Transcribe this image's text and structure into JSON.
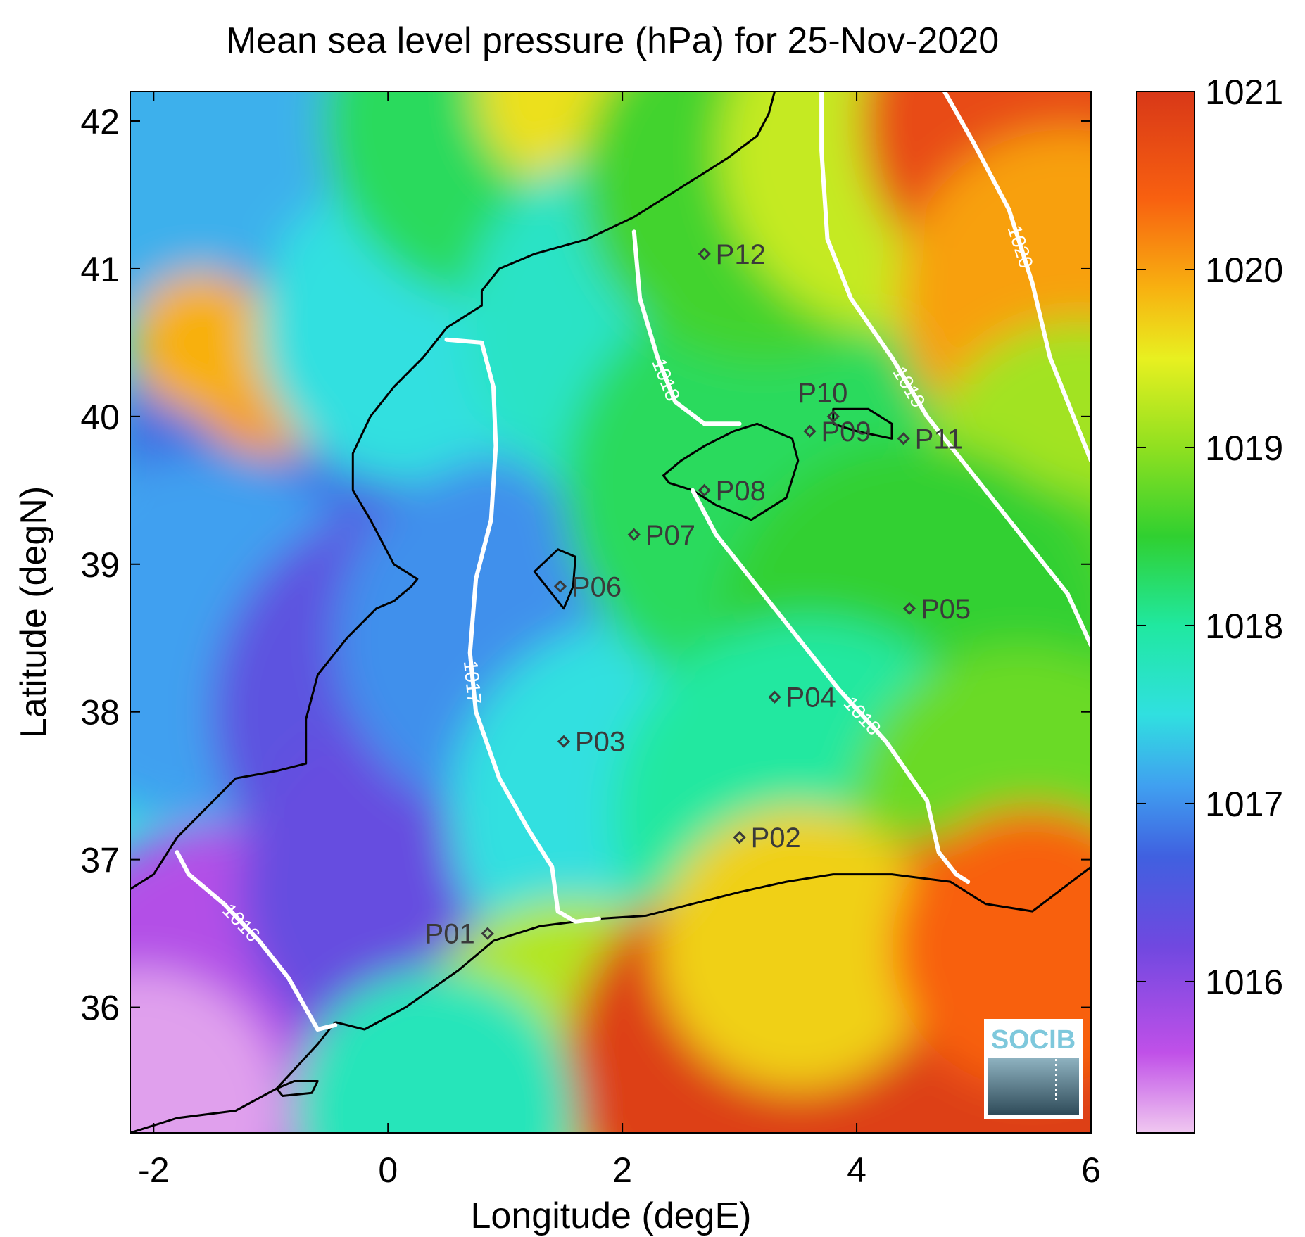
{
  "title": "Mean sea level pressure (hPa) for 25-Nov-2020",
  "xaxis": {
    "label": "Longitude (degE)",
    "range": [
      -2.2,
      6.0
    ],
    "ticks": [
      -2,
      0,
      2,
      4,
      6
    ]
  },
  "yaxis": {
    "label": "Latitude (degN)",
    "range": [
      35.15,
      42.2
    ],
    "ticks": [
      36,
      37,
      38,
      39,
      40,
      41,
      42
    ]
  },
  "colorbar": {
    "range": [
      1015.15,
      1021.0
    ],
    "ticks": [
      1016,
      1017,
      1018,
      1019,
      1020,
      1021
    ],
    "stops": [
      {
        "v": 1015.15,
        "c": "#f0c8f0"
      },
      {
        "v": 1015.6,
        "c": "#c050e8"
      },
      {
        "v": 1016.2,
        "c": "#7048e0"
      },
      {
        "v": 1016.7,
        "c": "#4060e0"
      },
      {
        "v": 1017.1,
        "c": "#40a0f0"
      },
      {
        "v": 1017.5,
        "c": "#30e0e0"
      },
      {
        "v": 1018.0,
        "c": "#20e8a0"
      },
      {
        "v": 1018.5,
        "c": "#30d030"
      },
      {
        "v": 1019.0,
        "c": "#90e020"
      },
      {
        "v": 1019.5,
        "c": "#e8f020"
      },
      {
        "v": 1019.9,
        "c": "#f8b010"
      },
      {
        "v": 1020.4,
        "c": "#f86010"
      },
      {
        "v": 1021.0,
        "c": "#d83818"
      }
    ]
  },
  "stations": [
    {
      "name": "P01",
      "lon": 0.85,
      "lat": 36.5
    },
    {
      "name": "P02",
      "lon": 3.0,
      "lat": 37.15
    },
    {
      "name": "P03",
      "lon": 1.5,
      "lat": 37.8
    },
    {
      "name": "P04",
      "lon": 3.3,
      "lat": 38.1
    },
    {
      "name": "P05",
      "lon": 4.45,
      "lat": 38.7
    },
    {
      "name": "P06",
      "lon": 1.47,
      "lat": 38.85
    },
    {
      "name": "P07",
      "lon": 2.1,
      "lat": 39.2
    },
    {
      "name": "P08",
      "lon": 2.7,
      "lat": 39.5
    },
    {
      "name": "P09",
      "lon": 3.6,
      "lat": 39.9
    },
    {
      "name": "P10",
      "lon": 3.8,
      "lat": 40.0
    },
    {
      "name": "P11",
      "lon": 4.4,
      "lat": 39.85
    },
    {
      "name": "P12",
      "lon": 2.7,
      "lat": 41.1
    }
  ],
  "contours": [
    {
      "level": "1016",
      "points": [
        [
          -1.8,
          37.05
        ],
        [
          -1.7,
          36.9
        ],
        [
          -1.4,
          36.7
        ],
        [
          -1.1,
          36.45
        ],
        [
          -0.85,
          36.2
        ],
        [
          -0.6,
          35.85
        ],
        [
          -0.45,
          35.88
        ]
      ]
    },
    {
      "level": "1017",
      "points": [
        [
          0.5,
          40.52
        ],
        [
          0.8,
          40.5
        ],
        [
          0.9,
          40.2
        ],
        [
          0.92,
          39.8
        ],
        [
          0.88,
          39.3
        ],
        [
          0.75,
          38.9
        ],
        [
          0.7,
          38.4
        ],
        [
          0.75,
          38.0
        ],
        [
          0.95,
          37.55
        ],
        [
          1.2,
          37.2
        ],
        [
          1.4,
          36.95
        ],
        [
          1.45,
          36.65
        ],
        [
          1.6,
          36.58
        ],
        [
          1.8,
          36.6
        ]
      ]
    },
    {
      "level": "1018",
      "points": [
        [
          2.1,
          41.25
        ],
        [
          2.15,
          40.8
        ],
        [
          2.3,
          40.4
        ],
        [
          2.45,
          40.1
        ],
        [
          2.7,
          39.95
        ],
        [
          3.0,
          39.95
        ]
      ]
    },
    {
      "level": "1018",
      "points": [
        [
          2.6,
          39.5
        ],
        [
          2.8,
          39.2
        ],
        [
          3.1,
          38.9
        ],
        [
          3.5,
          38.5
        ],
        [
          3.85,
          38.15
        ],
        [
          4.25,
          37.8
        ],
        [
          4.6,
          37.4
        ],
        [
          4.7,
          37.05
        ],
        [
          4.85,
          36.9
        ],
        [
          4.95,
          36.85
        ]
      ]
    },
    {
      "level": "1019",
      "points": [
        [
          3.7,
          42.2
        ],
        [
          3.7,
          41.8
        ],
        [
          3.75,
          41.2
        ],
        [
          3.95,
          40.8
        ],
        [
          4.3,
          40.4
        ],
        [
          4.6,
          40.0
        ],
        [
          5.0,
          39.6
        ],
        [
          5.4,
          39.2
        ],
        [
          5.8,
          38.8
        ],
        [
          6.0,
          38.45
        ]
      ]
    },
    {
      "level": "1020",
      "points": [
        [
          4.75,
          42.2
        ],
        [
          5.0,
          41.85
        ],
        [
          5.3,
          41.4
        ],
        [
          5.5,
          40.9
        ],
        [
          5.65,
          40.4
        ],
        [
          5.85,
          40.0
        ],
        [
          6.0,
          39.7
        ]
      ]
    }
  ],
  "coastlines": [
    [
      [
        -2.2,
        36.8
      ],
      [
        -2.0,
        36.9
      ],
      [
        -1.8,
        37.15
      ],
      [
        -1.55,
        37.35
      ],
      [
        -1.3,
        37.55
      ],
      [
        -0.95,
        37.6
      ],
      [
        -0.7,
        37.65
      ],
      [
        -0.7,
        37.95
      ],
      [
        -0.6,
        38.25
      ],
      [
        -0.5,
        38.35
      ],
      [
        -0.35,
        38.5
      ],
      [
        -0.1,
        38.7
      ],
      [
        0.05,
        38.75
      ],
      [
        0.2,
        38.85
      ],
      [
        0.25,
        38.9
      ],
      [
        0.05,
        39.0
      ],
      [
        -0.15,
        39.3
      ],
      [
        -0.3,
        39.5
      ],
      [
        -0.3,
        39.75
      ],
      [
        -0.15,
        40.0
      ],
      [
        0.05,
        40.2
      ],
      [
        0.3,
        40.4
      ],
      [
        0.5,
        40.6
      ],
      [
        0.7,
        40.7
      ],
      [
        0.8,
        40.75
      ],
      [
        0.8,
        40.85
      ],
      [
        0.95,
        41.0
      ],
      [
        1.25,
        41.1
      ],
      [
        1.7,
        41.2
      ],
      [
        2.1,
        41.35
      ],
      [
        2.5,
        41.55
      ],
      [
        2.9,
        41.75
      ],
      [
        3.15,
        41.9
      ],
      [
        3.25,
        42.05
      ],
      [
        3.3,
        42.2
      ]
    ],
    [
      [
        -0.45,
        35.9
      ],
      [
        -0.2,
        35.85
      ],
      [
        0.15,
        36.0
      ],
      [
        0.6,
        36.25
      ],
      [
        0.9,
        36.45
      ],
      [
        1.3,
        36.55
      ],
      [
        1.8,
        36.6
      ],
      [
        2.2,
        36.62
      ],
      [
        2.6,
        36.7
      ],
      [
        3.0,
        36.78
      ],
      [
        3.4,
        36.85
      ],
      [
        3.8,
        36.9
      ],
      [
        4.3,
        36.9
      ],
      [
        4.8,
        36.85
      ],
      [
        5.1,
        36.7
      ],
      [
        5.5,
        36.65
      ],
      [
        6.0,
        36.95
      ]
    ],
    [
      [
        -2.2,
        35.15
      ],
      [
        -1.8,
        35.25
      ],
      [
        -1.3,
        35.3
      ],
      [
        -0.95,
        35.45
      ],
      [
        -0.6,
        35.75
      ],
      [
        -0.45,
        35.9
      ]
    ]
  ],
  "islands": [
    [
      [
        2.35,
        39.6
      ],
      [
        2.5,
        39.7
      ],
      [
        2.7,
        39.8
      ],
      [
        2.95,
        39.9
      ],
      [
        3.15,
        39.95
      ],
      [
        3.45,
        39.85
      ],
      [
        3.5,
        39.7
      ],
      [
        3.4,
        39.45
      ],
      [
        3.1,
        39.3
      ],
      [
        2.8,
        39.4
      ],
      [
        2.6,
        39.5
      ],
      [
        2.4,
        39.55
      ]
    ],
    [
      [
        3.8,
        40.05
      ],
      [
        4.1,
        40.05
      ],
      [
        4.3,
        39.95
      ],
      [
        4.3,
        39.85
      ],
      [
        4.0,
        39.9
      ],
      [
        3.8,
        39.95
      ]
    ],
    [
      [
        1.25,
        38.95
      ],
      [
        1.45,
        39.1
      ],
      [
        1.6,
        39.05
      ],
      [
        1.58,
        38.85
      ],
      [
        1.5,
        38.7
      ],
      [
        1.35,
        38.85
      ]
    ],
    [
      [
        -0.95,
        35.45
      ],
      [
        -0.8,
        35.5
      ],
      [
        -0.6,
        35.5
      ],
      [
        -0.65,
        35.42
      ],
      [
        -0.9,
        35.4
      ]
    ]
  ],
  "logo": {
    "text": "SOCIB",
    "bg": "#2e4a58",
    "accent": "#7ec8dc"
  }
}
